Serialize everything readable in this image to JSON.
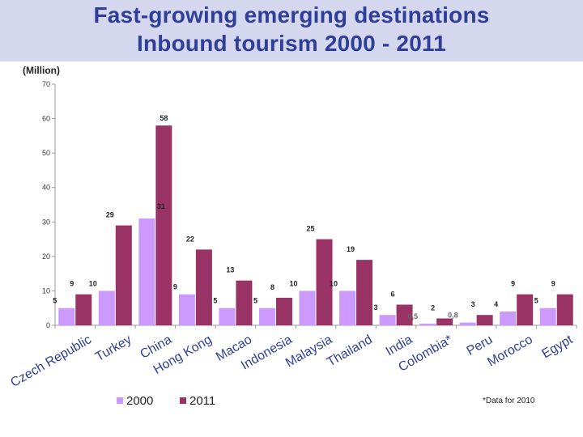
{
  "header": {
    "title_line1": "Fast-growing emerging destinations",
    "title_line2": "Inbound tourism 2000 - 2011"
  },
  "unit_label": "(Million)",
  "footnote": "*Data for 2010",
  "colors": {
    "y2000": "#cc99ff",
    "y2011": "#993366",
    "title": "#2f3f99",
    "band": "#d5d7ee"
  },
  "chart_data": {
    "type": "bar",
    "categories": [
      "Czech Republic",
      "Turkey",
      "China",
      "Hong Kong",
      "Macao",
      "Indonesia",
      "Malaysia",
      "Thailand",
      "India",
      "Colombia*",
      "Peru",
      "Morocco",
      "Egypt"
    ],
    "series": [
      {
        "name": "2000",
        "values": [
          5,
          10,
          31,
          9,
          5,
          5,
          10,
          10,
          3,
          0.5,
          0.8,
          4,
          5
        ],
        "labels": [
          "5",
          "10",
          "",
          "9",
          "5",
          "5",
          "10",
          "10",
          "3",
          "0,5",
          "0,8",
          "4",
          "5"
        ]
      },
      {
        "name": "2011",
        "values": [
          9,
          29,
          58,
          22,
          13,
          8,
          25,
          19,
          6,
          2,
          3,
          9,
          9
        ],
        "labels": [
          "9",
          "29",
          "",
          "22",
          "13",
          "8",
          "25",
          "19",
          "6",
          "2",
          "3",
          "9",
          "9"
        ]
      }
    ],
    "callouts": [
      {
        "category": "China",
        "series": "2011",
        "label": "58"
      },
      {
        "category": "China",
        "series": "2000",
        "label": "31"
      }
    ],
    "ylim": [
      0,
      70
    ],
    "yticks": [
      0,
      10,
      20,
      30,
      40,
      50,
      60,
      70
    ],
    "grid": false,
    "legend": "bottom-left"
  }
}
